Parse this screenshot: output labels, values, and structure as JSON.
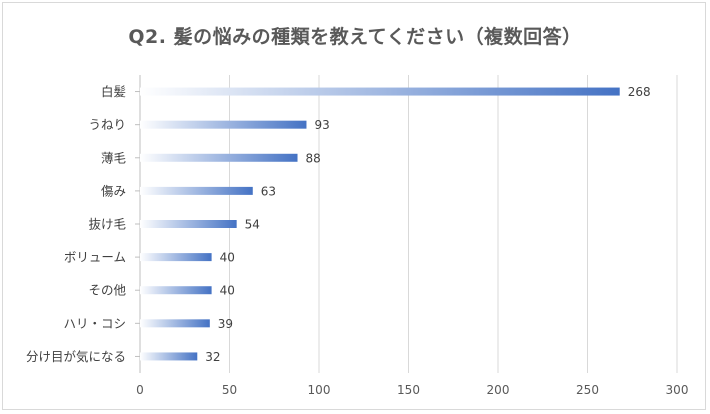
{
  "chart_data": {
    "type": "bar",
    "orientation": "horizontal",
    "title": "Q2. 髪の悩みの種類を教えてください（複数回答）",
    "categories": [
      "白髪",
      "うねり",
      "薄毛",
      "傷み",
      "抜け毛",
      "ボリューム",
      "その他",
      "ハリ・コシ",
      "分け目が気になる"
    ],
    "values": [
      268,
      93,
      88,
      63,
      54,
      40,
      40,
      39,
      32
    ],
    "xlim": [
      0,
      300
    ],
    "xticks": [
      0,
      50,
      100,
      150,
      200,
      250,
      300
    ],
    "xlabel": "",
    "ylabel": "",
    "grid": true,
    "legend": "none",
    "bar_color": "#4472c4",
    "bar_fade_color": "#ffffff"
  }
}
